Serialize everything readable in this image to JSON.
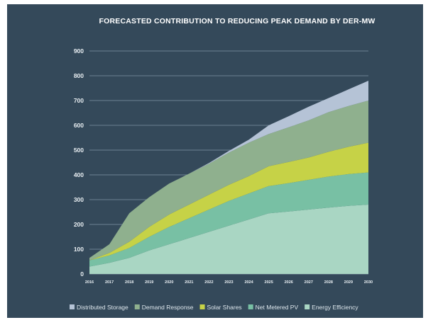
{
  "chart_data": {
    "type": "area",
    "title": "FORECASTED CONTRIBUTION TO REDUCING PEAK DEMAND BY DER-MW",
    "xlabel": "",
    "ylabel": "",
    "x": [
      "2016",
      "2017",
      "2018",
      "2019",
      "2020",
      "2021",
      "2022",
      "2023",
      "2024",
      "2025",
      "2026",
      "2027",
      "2028",
      "2029",
      "2030"
    ],
    "ylim": [
      0,
      900
    ],
    "yticks": [
      "0",
      "100",
      "200",
      "300",
      "400",
      "500",
      "600",
      "700",
      "800",
      "900"
    ],
    "grid": true,
    "stacked": true,
    "legend_position": "bottom",
    "series": [
      {
        "name": "Energy Efficiency",
        "color": "#a9d6c3",
        "values": [
          30,
          45,
          65,
          95,
          120,
          145,
          170,
          195,
          220,
          245,
          252,
          260,
          268,
          275,
          280
        ]
      },
      {
        "name": "Net Metered PV",
        "color": "#78c0a4",
        "values": [
          25,
          30,
          40,
          55,
          70,
          80,
          90,
          100,
          105,
          110,
          115,
          120,
          125,
          128,
          130
        ]
      },
      {
        "name": "Solar Shares",
        "color": "#c6d247",
        "values": [
          0,
          10,
          25,
          40,
          50,
          55,
          60,
          65,
          70,
          80,
          85,
          90,
          100,
          110,
          120
        ]
      },
      {
        "name": "Demand Response",
        "color": "#8fb08e",
        "values": [
          10,
          35,
          115,
          120,
          125,
          125,
          125,
          130,
          135,
          130,
          140,
          150,
          160,
          165,
          170
        ]
      },
      {
        "name": "Distributed Storage",
        "color": "#b5c3d6",
        "values": [
          0,
          0,
          0,
          0,
          0,
          0,
          3,
          7,
          12,
          35,
          45,
          55,
          57,
          67,
          80
        ]
      }
    ],
    "legend": [
      "Distributed Storage",
      "Demand Response",
      "Solar Shares",
      "Net Metered PV",
      "Energy Efficiency"
    ]
  }
}
